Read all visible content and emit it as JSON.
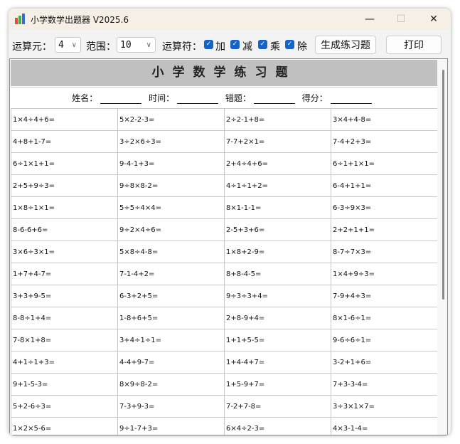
{
  "window": {
    "title": "小学数学出题器 V2025.6",
    "minimize": "—",
    "maximize": "☐",
    "close": "✕"
  },
  "toolbar": {
    "operands_label": "运算元：",
    "operands_value": "4",
    "range_label": "范围：",
    "range_value": "10",
    "operators_label": "运算符：",
    "ops": [
      {
        "label": "加",
        "checked": true
      },
      {
        "label": "减",
        "checked": true
      },
      {
        "label": "乘",
        "checked": true
      },
      {
        "label": "除",
        "checked": true
      }
    ],
    "generate_label": "生成练习题",
    "print_label": "打印"
  },
  "sheet": {
    "title": "小学数学练习题",
    "name_label": "姓名：",
    "time_label": "时间：",
    "errors_label": "错题：",
    "score_label": "得分：",
    "rows": [
      [
        "1×4÷4+6=",
        "5×2-2-3=",
        "2÷2-1+8=",
        "3×4+4-8="
      ],
      [
        "4+8+1-7=",
        "3÷2×6÷3=",
        "7-7+2×1=",
        "7-4+2+3="
      ],
      [
        "6÷1×1+1=",
        "9-4-1+3=",
        "2+4÷4+6=",
        "6÷1+1×1="
      ],
      [
        "2+5+9÷3=",
        "9÷8×8-2=",
        "4÷1÷1+2=",
        "6-4+1+1="
      ],
      [
        "1×8÷1×1=",
        "5÷5÷4×4=",
        "8×1-1-1=",
        "6-3÷9×3="
      ],
      [
        "8-6-6+6=",
        "9÷2×4÷6=",
        "2-5+3+6=",
        "2+2+1+1="
      ],
      [
        "3×6÷3×1=",
        "5×8÷4-8=",
        "1×8+2-9=",
        "8-7÷7×3="
      ],
      [
        "1+7+4-7=",
        "7-1-4+2=",
        "8+8-4-5=",
        "1×4+9÷3="
      ],
      [
        "3+3+9-5=",
        "6-3+2+5=",
        "9÷3÷3+4=",
        "7-9+4+3="
      ],
      [
        "8-8÷1+4=",
        "1-8+6+5=",
        "2+8-9+4=",
        "8×1-6÷1="
      ],
      [
        "7-8×1+8=",
        "3+4÷1÷1=",
        "1+1+5-5=",
        "9-6÷6÷1="
      ],
      [
        "4+1÷1+3=",
        "4-4+9-7=",
        "1+4-4+7=",
        "3-2+1+6="
      ],
      [
        "9+1-5-3=",
        "8×9÷8-2=",
        "1+5-9+7=",
        "7+3-3-4="
      ],
      [
        "5+2-6÷3=",
        "7-3+9-3=",
        "7-2+7-8=",
        "3÷3×1×7="
      ],
      [
        "1×2×5-6=",
        "9÷1-7+3=",
        "6×4÷2-3=",
        "4×3-1-4="
      ]
    ]
  },
  "colors": {
    "checkbox": "#1663c7",
    "title_band": "#c0c0c0",
    "titlebar": "#f6efe6"
  }
}
